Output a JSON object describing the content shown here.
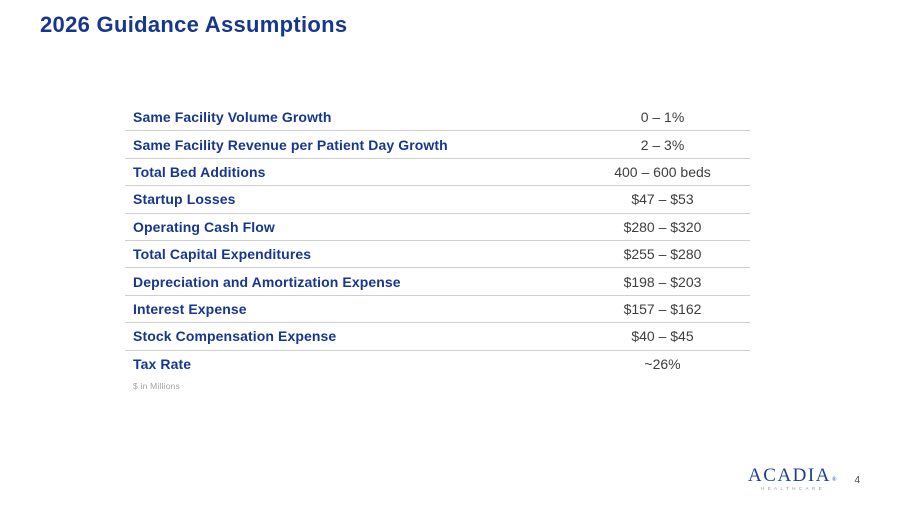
{
  "slide": {
    "title": "2026 Guidance Assumptions",
    "footnote": "$ in Millions",
    "page_number": "4"
  },
  "table": {
    "rows": [
      {
        "label": "Same Facility Volume Growth",
        "value": "0 – 1%"
      },
      {
        "label": "Same Facility Revenue per Patient Day Growth",
        "value": "2 – 3%"
      },
      {
        "label": "Total Bed Additions",
        "value": "400 – 600 beds"
      },
      {
        "label": "Startup Losses",
        "value": "$47 – $53"
      },
      {
        "label": "Operating Cash Flow",
        "value": "$280 – $320"
      },
      {
        "label": "Total Capital Expenditures",
        "value": "$255 – $280"
      },
      {
        "label": "Depreciation and Amortization Expense",
        "value": "$198 – $203"
      },
      {
        "label": "Interest Expense",
        "value": "$157 – $162"
      },
      {
        "label": "Stock Compensation Expense",
        "value": "$40 – $45"
      },
      {
        "label": "Tax Rate",
        "value": "~26%"
      }
    ]
  },
  "logo": {
    "name": "ACADIA",
    "registered_mark": "®",
    "subtext": "HEALTHCARE"
  },
  "colors": {
    "navy": "#17378e",
    "value_text": "#3d3e40",
    "divider": "#cfcfcf",
    "footnote": "#a3a3a3",
    "logo_sub": "#8d97a8"
  }
}
